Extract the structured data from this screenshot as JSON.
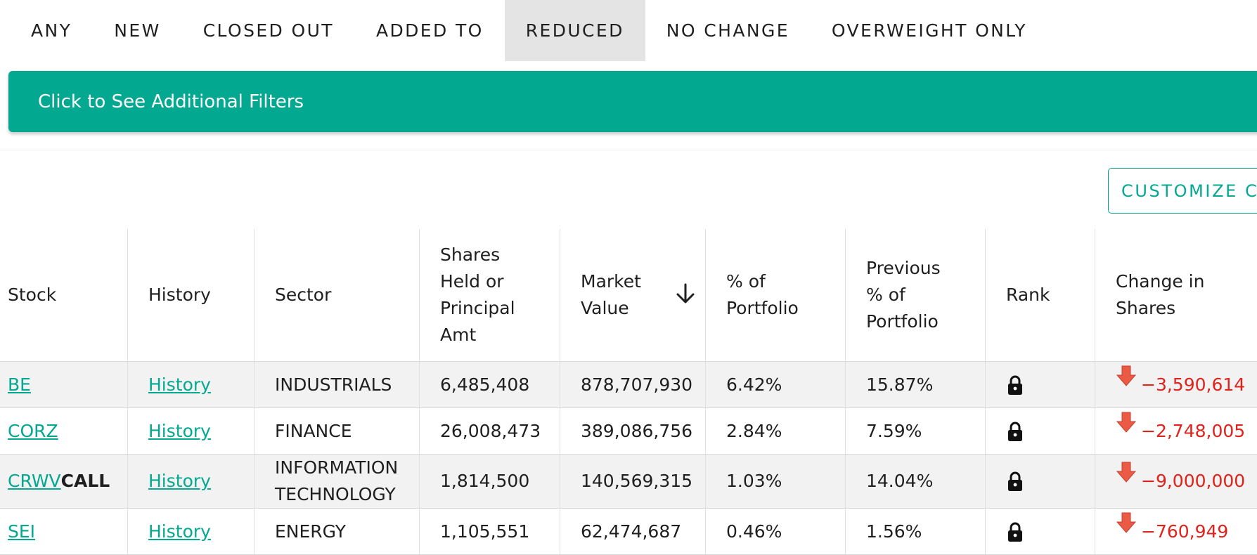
{
  "tabs": [
    {
      "label": "ANY",
      "active": false
    },
    {
      "label": "NEW",
      "active": false
    },
    {
      "label": "CLOSED OUT",
      "active": false
    },
    {
      "label": "ADDED TO",
      "active": false
    },
    {
      "label": "REDUCED",
      "active": true
    },
    {
      "label": "NO CHANGE",
      "active": false
    },
    {
      "label": "OVERWEIGHT ONLY",
      "active": false
    }
  ],
  "filters_label": "Click to See Additional Filters",
  "customize_label": "CUSTOMIZE C",
  "colors": {
    "accent": "#03a890",
    "negative": "#e0221b",
    "active_tab_bg": "#e4e4e4",
    "row_shade": "#f2f2f2"
  },
  "table": {
    "headers": {
      "stock": "Stock",
      "history": "History",
      "sector": "Sector",
      "shares": [
        "Shares",
        "Held or",
        "Principal",
        "Amt"
      ],
      "market_value": [
        "Market",
        "Value"
      ],
      "pct": [
        "% of",
        "Portfolio"
      ],
      "prev_pct": [
        "Previous",
        "% of",
        "Portfolio"
      ],
      "rank": "Rank",
      "change": [
        "Change in",
        "Shares"
      ]
    },
    "sort_icon": "arrow-down-icon",
    "rows": [
      {
        "ticker": "BE",
        "suffix": "",
        "history": "History",
        "sector": [
          "INDUSTRIALS"
        ],
        "shares": "6,485,408",
        "market_value": "878,707,930",
        "pct": "6.42%",
        "prev_pct": "15.87%",
        "rank_icon": "lock-icon",
        "change": "−3,590,614",
        "change_icon": "down-arrow-icon"
      },
      {
        "ticker": "CORZ",
        "suffix": "",
        "history": "History",
        "sector": [
          "FINANCE"
        ],
        "shares": "26,008,473",
        "market_value": "389,086,756",
        "pct": "2.84%",
        "prev_pct": "7.59%",
        "rank_icon": "lock-icon",
        "change": "−2,748,005",
        "change_icon": "down-arrow-icon"
      },
      {
        "ticker": "CRWV",
        "suffix": "CALL",
        "history": "History",
        "sector": [
          "INFORMATION",
          "TECHNOLOGY"
        ],
        "shares": "1,814,500",
        "market_value": "140,569,315",
        "pct": "1.03%",
        "prev_pct": "14.04%",
        "rank_icon": "lock-icon",
        "change": "−9,000,000",
        "change_icon": "down-arrow-icon"
      },
      {
        "ticker": "SEI",
        "suffix": "",
        "history": "History",
        "sector": [
          "ENERGY"
        ],
        "shares": "1,105,551",
        "market_value": "62,474,687",
        "pct": "0.46%",
        "prev_pct": "1.56%",
        "rank_icon": "lock-icon",
        "change": "−760,949",
        "change_icon": "down-arrow-icon"
      }
    ]
  }
}
